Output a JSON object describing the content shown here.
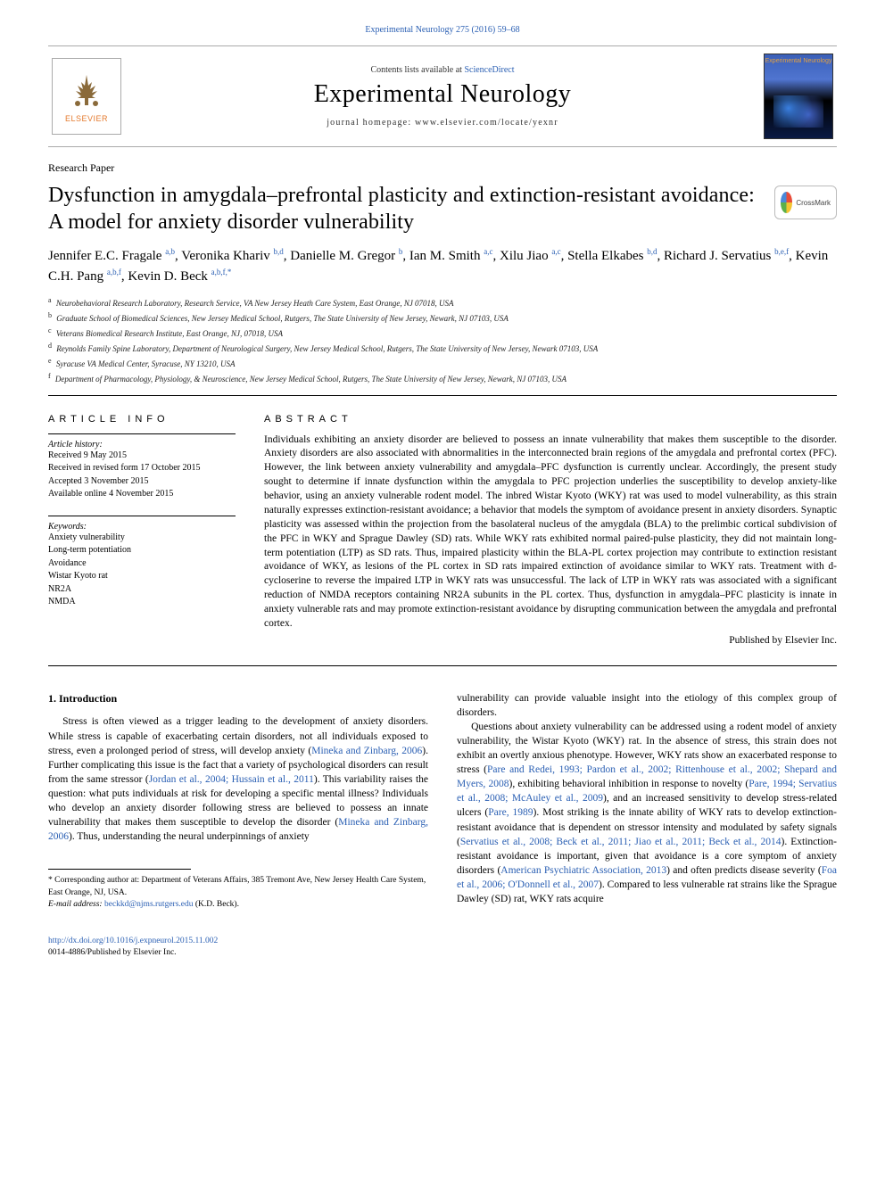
{
  "top_link": {
    "journal": "Experimental Neurology",
    "citation": "275 (2016) 59–68"
  },
  "header": {
    "contents_prefix": "Contents lists available at ",
    "contents_link": "ScienceDirect",
    "journal_name": "Experimental Neurology",
    "homepage_prefix": "journal homepage: ",
    "homepage_url": "www.elsevier.com/locate/yexnr",
    "elsevier_brand": "ELSEVIER",
    "cover_label": "Experimental Neurology"
  },
  "article": {
    "type": "Research Paper",
    "title": "Dysfunction in amygdala–prefrontal plasticity and extinction-resistant avoidance: A model for anxiety disorder vulnerability",
    "crossmark": "CrossMark"
  },
  "authors": [
    {
      "name": "Jennifer E.C. Fragale",
      "aff": "a,b"
    },
    {
      "name": "Veronika Khariv",
      "aff": "b,d"
    },
    {
      "name": "Danielle M. Gregor",
      "aff": "b"
    },
    {
      "name": "Ian M. Smith",
      "aff": "a,c"
    },
    {
      "name": "Xilu Jiao",
      "aff": "a,c"
    },
    {
      "name": "Stella Elkabes",
      "aff": "b,d"
    },
    {
      "name": "Richard J. Servatius",
      "aff": "b,e,f"
    },
    {
      "name": "Kevin C.H. Pang",
      "aff": "a,b,f"
    },
    {
      "name": "Kevin D. Beck",
      "aff": "a,b,f,*"
    }
  ],
  "affiliations": [
    {
      "key": "a",
      "text": "Neurobehavioral Research Laboratory, Research Service, VA New Jersey Heath Care System, East Orange, NJ 07018, USA"
    },
    {
      "key": "b",
      "text": "Graduate School of Biomedical Sciences, New Jersey Medical School, Rutgers, The State University of New Jersey, Newark, NJ 07103, USA"
    },
    {
      "key": "c",
      "text": "Veterans Biomedical Research Institute, East Orange, NJ, 07018, USA"
    },
    {
      "key": "d",
      "text": "Reynolds Family Spine Laboratory, Department of Neurological Surgery, New Jersey Medical School, Rutgers, The State University of New Jersey, Newark 07103, USA"
    },
    {
      "key": "e",
      "text": "Syracuse VA Medical Center, Syracuse, NY 13210, USA"
    },
    {
      "key": "f",
      "text": "Department of Pharmacology, Physiology, & Neuroscience, New Jersey Medical School, Rutgers, The State University of New Jersey, Newark, NJ 07103, USA"
    }
  ],
  "article_info": {
    "heading": "ARTICLE INFO",
    "history_label": "Article history:",
    "history": [
      "Received 9 May 2015",
      "Received in revised form 17 October 2015",
      "Accepted 3 November 2015",
      "Available online 4 November 2015"
    ],
    "keywords_label": "Keywords:",
    "keywords": [
      "Anxiety vulnerability",
      "Long-term potentiation",
      "Avoidance",
      "Wistar Kyoto rat",
      "NR2A",
      "NMDA"
    ]
  },
  "abstract": {
    "heading": "ABSTRACT",
    "text": "Individuals exhibiting an anxiety disorder are believed to possess an innate vulnerability that makes them susceptible to the disorder. Anxiety disorders are also associated with abnormalities in the interconnected brain regions of the amygdala and prefrontal cortex (PFC). However, the link between anxiety vulnerability and amygdala–PFC dysfunction is currently unclear. Accordingly, the present study sought to determine if innate dysfunction within the amygdala to PFC projection underlies the susceptibility to develop anxiety-like behavior, using an anxiety vulnerable rodent model. The inbred Wistar Kyoto (WKY) rat was used to model vulnerability, as this strain naturally expresses extinction-resistant avoidance; a behavior that models the symptom of avoidance present in anxiety disorders. Synaptic plasticity was assessed within the projection from the basolateral nucleus of the amygdala (BLA) to the prelimbic cortical subdivision of the PFC in WKY and Sprague Dawley (SD) rats. While WKY rats exhibited normal paired-pulse plasticity, they did not maintain long-term potentiation (LTP) as SD rats. Thus, impaired plasticity within the BLA-PL cortex projection may contribute to extinction resistant avoidance of WKY, as lesions of the PL cortex in SD rats impaired extinction of avoidance similar to WKY rats. Treatment with d-cycloserine to reverse the impaired LTP in WKY rats was unsuccessful. The lack of LTP in WKY rats was associated with a significant reduction of NMDA receptors containing NR2A subunits in the PL cortex. Thus, dysfunction in amygdala–PFC plasticity is innate in anxiety vulnerable rats and may promote extinction-resistant avoidance by disrupting communication between the amygdala and prefrontal cortex.",
    "publisher": "Published by Elsevier Inc."
  },
  "intro": {
    "heading": "1. Introduction",
    "p1_pre": "Stress is often viewed as a trigger leading to the development of anxiety disorders. While stress is capable of exacerbating certain disorders, not all individuals exposed to stress, even a prolonged period of stress, will develop anxiety (",
    "p1_ref1": "Mineka and Zinbarg, 2006",
    "p1_mid1": "). Further complicating this issue is the fact that a variety of psychological disorders can result from the same stressor (",
    "p1_ref2": "Jordan et al., 2004; Hussain et al., 2011",
    "p1_mid2": "). This variability raises the question: what puts individuals at risk for developing a specific mental illness? Individuals who develop an anxiety disorder following stress are believed to possess an innate vulnerability that makes them susceptible to develop the disorder (",
    "p1_ref3": "Mineka and Zinbarg, 2006",
    "p1_post": "). Thus, understanding the neural underpinnings of anxiety",
    "col2_cont": "vulnerability can provide valuable insight into the etiology of this complex group of disorders.",
    "p2_pre": "Questions about anxiety vulnerability can be addressed using a rodent model of anxiety vulnerability, the Wistar Kyoto (WKY) rat. In the absence of stress, this strain does not exhibit an overtly anxious phenotype. However, WKY rats show an exacerbated response to stress (",
    "p2_ref1": "Pare and Redei, 1993; Pardon et al., 2002; Rittenhouse et al., 2002; Shepard and Myers, 2008",
    "p2_mid1": "), exhibiting behavioral inhibition in response to novelty (",
    "p2_ref2": "Pare, 1994; Servatius et al., 2008; McAuley et al., 2009",
    "p2_mid2": "), and an increased sensitivity to develop stress-related ulcers (",
    "p2_ref3": "Pare, 1989",
    "p2_mid3": "). Most striking is the innate ability of WKY rats to develop extinction-resistant avoidance that is dependent on stressor intensity and modulated by safety signals (",
    "p2_ref4": "Servatius et al., 2008; Beck et al., 2011; Jiao et al., 2011; Beck et al., 2014",
    "p2_mid4": "). Extinction-resistant avoidance is important, given that avoidance is a core symptom of anxiety disorders (",
    "p2_ref5": "American Psychiatric Association, 2013",
    "p2_mid5": ") and often predicts disease severity (",
    "p2_ref6": "Foa et al., 2006; O'Donnell et al., 2007",
    "p2_post": "). Compared to less vulnerable rat strains like the Sprague Dawley (SD) rat, WKY rats acquire"
  },
  "footnote": {
    "corr": "* Corresponding author at: Department of Veterans Affairs, 385 Tremont Ave, New Jersey Health Care System, East Orange, NJ, USA.",
    "email_label": "E-mail address:",
    "email": "beckkd@njms.rutgers.edu",
    "email_name": "(K.D. Beck)."
  },
  "footer": {
    "doi": "http://dx.doi.org/10.1016/j.expneurol.2015.11.002",
    "copyright": "0014-4886/Published by Elsevier Inc."
  },
  "colors": {
    "link": "#2a5fb3",
    "brand": "#e47a2e",
    "text": "#000000",
    "rule": "#000000"
  }
}
